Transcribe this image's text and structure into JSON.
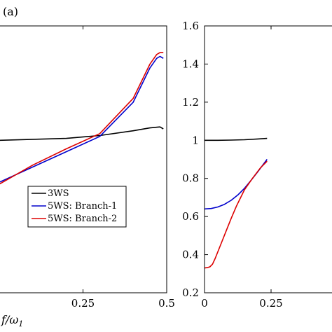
{
  "chart_data": [
    {
      "type": "line",
      "panel_label": "(a)",
      "xlabel": "f/ω1",
      "xlabel_main": "f/",
      "xlabel_omega": "ω",
      "xlabel_sub": "1",
      "xlim": [
        0,
        0.5
      ],
      "ylim": [
        0.2,
        1.6
      ],
      "x_ticks": [
        "0.25",
        "0.5"
      ],
      "x_tick_values": [
        0.25,
        0.5
      ],
      "y_tick_values": [],
      "legend": {
        "position": "lower-right",
        "entries": [
          "3WS",
          "5WS: Branch-1",
          "5WS: Branch-2"
        ]
      },
      "series": [
        {
          "name": "3WS",
          "color": "#000000",
          "x": [
            0,
            0.1,
            0.2,
            0.3,
            0.4,
            0.45,
            0.48,
            0.49
          ],
          "y": [
            1.0,
            1.005,
            1.01,
            1.025,
            1.05,
            1.065,
            1.07,
            1.06
          ]
        },
        {
          "name": "5WS: Branch-1",
          "color": "#0000cc",
          "x": [
            0,
            0.1,
            0.2,
            0.3,
            0.4,
            0.45,
            0.47,
            0.48,
            0.49
          ],
          "y": [
            0.78,
            0.86,
            0.94,
            1.02,
            1.2,
            1.38,
            1.43,
            1.44,
            1.43
          ]
        },
        {
          "name": "5WS: Branch-2",
          "color": "#dd0000",
          "x": [
            0,
            0.1,
            0.2,
            0.3,
            0.4,
            0.45,
            0.47,
            0.48,
            0.49
          ],
          "y": [
            0.77,
            0.87,
            0.955,
            1.035,
            1.22,
            1.4,
            1.45,
            1.46,
            1.46
          ]
        }
      ]
    },
    {
      "type": "line",
      "panel_label": "",
      "xlabel": "",
      "xlim": [
        0,
        0.5
      ],
      "ylim": [
        0.2,
        1.6
      ],
      "x_ticks": [
        "0",
        "0.25"
      ],
      "x_tick_values": [
        0,
        0.25
      ],
      "y_ticks": [
        "1.6",
        "1.4",
        "1.2",
        "1",
        "0.8",
        "0.6",
        "0.4",
        "0.2"
      ],
      "y_tick_values": [
        1.6,
        1.4,
        1.2,
        1.0,
        0.8,
        0.6,
        0.4,
        0.2
      ],
      "series": [
        {
          "name": "3WS",
          "color": "#000000",
          "x": [
            0,
            0.05,
            0.1,
            0.15,
            0.2,
            0.235
          ],
          "y": [
            1.0,
            1.0,
            1.001,
            1.003,
            1.007,
            1.01
          ]
        },
        {
          "name": "5WS: Branch-1",
          "color": "#0000cc",
          "x": [
            0,
            0.025,
            0.05,
            0.075,
            0.1,
            0.125,
            0.15,
            0.175,
            0.2,
            0.235
          ],
          "y": [
            0.64,
            0.642,
            0.65,
            0.664,
            0.685,
            0.713,
            0.748,
            0.79,
            0.835,
            0.9
          ]
        },
        {
          "name": "5WS: Branch-2",
          "color": "#dd0000",
          "x": [
            0,
            0.01,
            0.02,
            0.03,
            0.04,
            0.06,
            0.08,
            0.1,
            0.12,
            0.15,
            0.18,
            0.21,
            0.235
          ],
          "y": [
            0.33,
            0.332,
            0.336,
            0.35,
            0.38,
            0.45,
            0.52,
            0.59,
            0.655,
            0.74,
            0.8,
            0.855,
            0.89
          ]
        }
      ]
    }
  ]
}
